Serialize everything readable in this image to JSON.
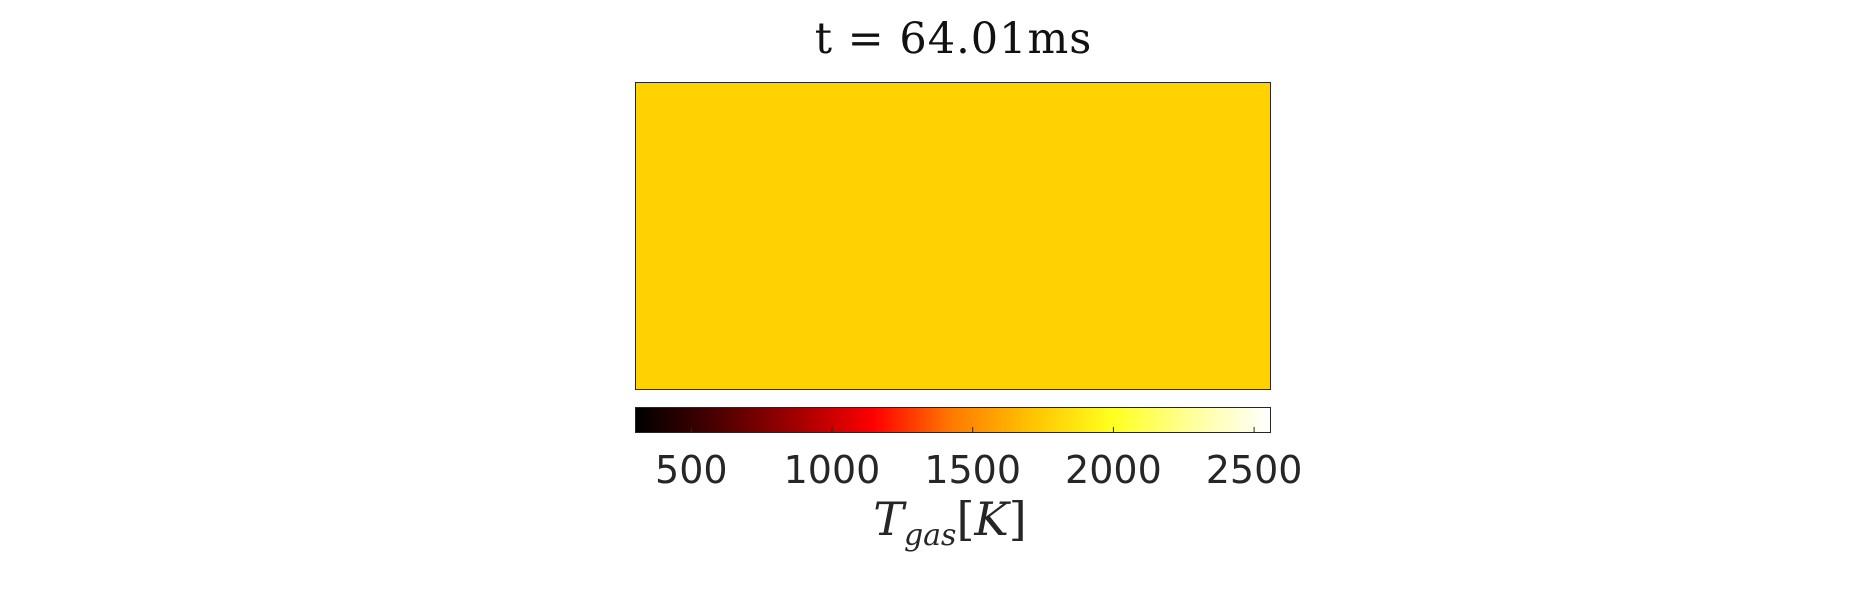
{
  "chart_data": {
    "type": "heatmap",
    "title": "t = 64.01ms",
    "colormap": "hot",
    "field_color": "#FFD200",
    "colorbar": {
      "label_main": "T",
      "label_sub": "gas",
      "label_unit": "K",
      "range": [
        300,
        2560
      ],
      "ticks": [
        500,
        1000,
        1500,
        2000,
        2500
      ],
      "tick_labels": [
        "500",
        "1000",
        "1500",
        "2000",
        "2500"
      ],
      "gradient": [
        "#000000",
        "#4a0000",
        "#a00000",
        "#ff0000",
        "#ff7b00",
        "#ffc400",
        "#ffff1e",
        "#ffff9a",
        "#ffffff"
      ]
    }
  }
}
